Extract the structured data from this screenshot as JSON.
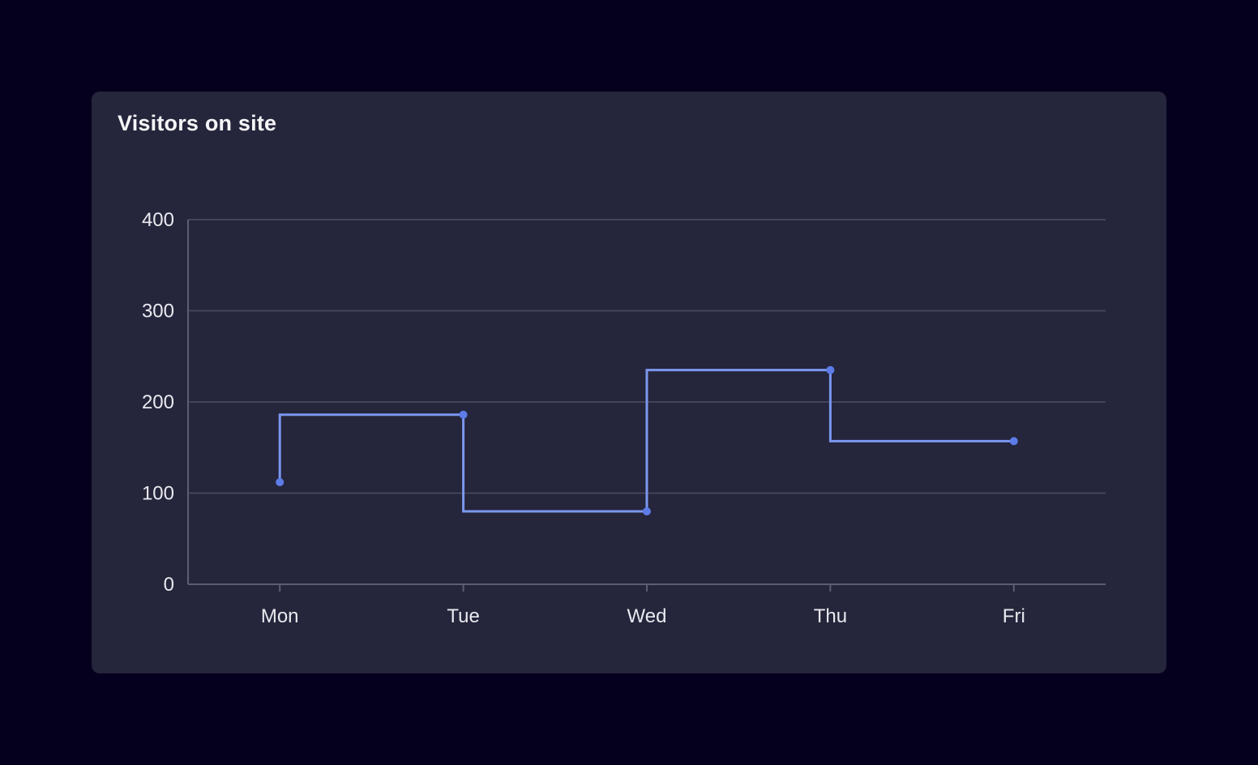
{
  "card": {
    "title": "Visitors on site"
  },
  "chart_data": {
    "type": "line",
    "line_style": "step-before",
    "title": "Visitors on site",
    "categories": [
      "Mon",
      "Tue",
      "Wed",
      "Thu",
      "Fri"
    ],
    "values": [
      112,
      186,
      80,
      235,
      157
    ],
    "xlabel": "",
    "ylabel": "",
    "ylim": [
      0,
      400
    ],
    "yticks": [
      0,
      100,
      200,
      300,
      400
    ],
    "grid": true,
    "legend": false,
    "point_markers": true,
    "colors": {
      "page_background": "#06001f",
      "card_background": "#25253b",
      "line": "#7b97ee",
      "point": "#5d7ce8",
      "grid": "#4c4c62",
      "axis": "#5c5c74",
      "tick_label": "#e9e9f0",
      "title": "#f5f5f8"
    }
  }
}
